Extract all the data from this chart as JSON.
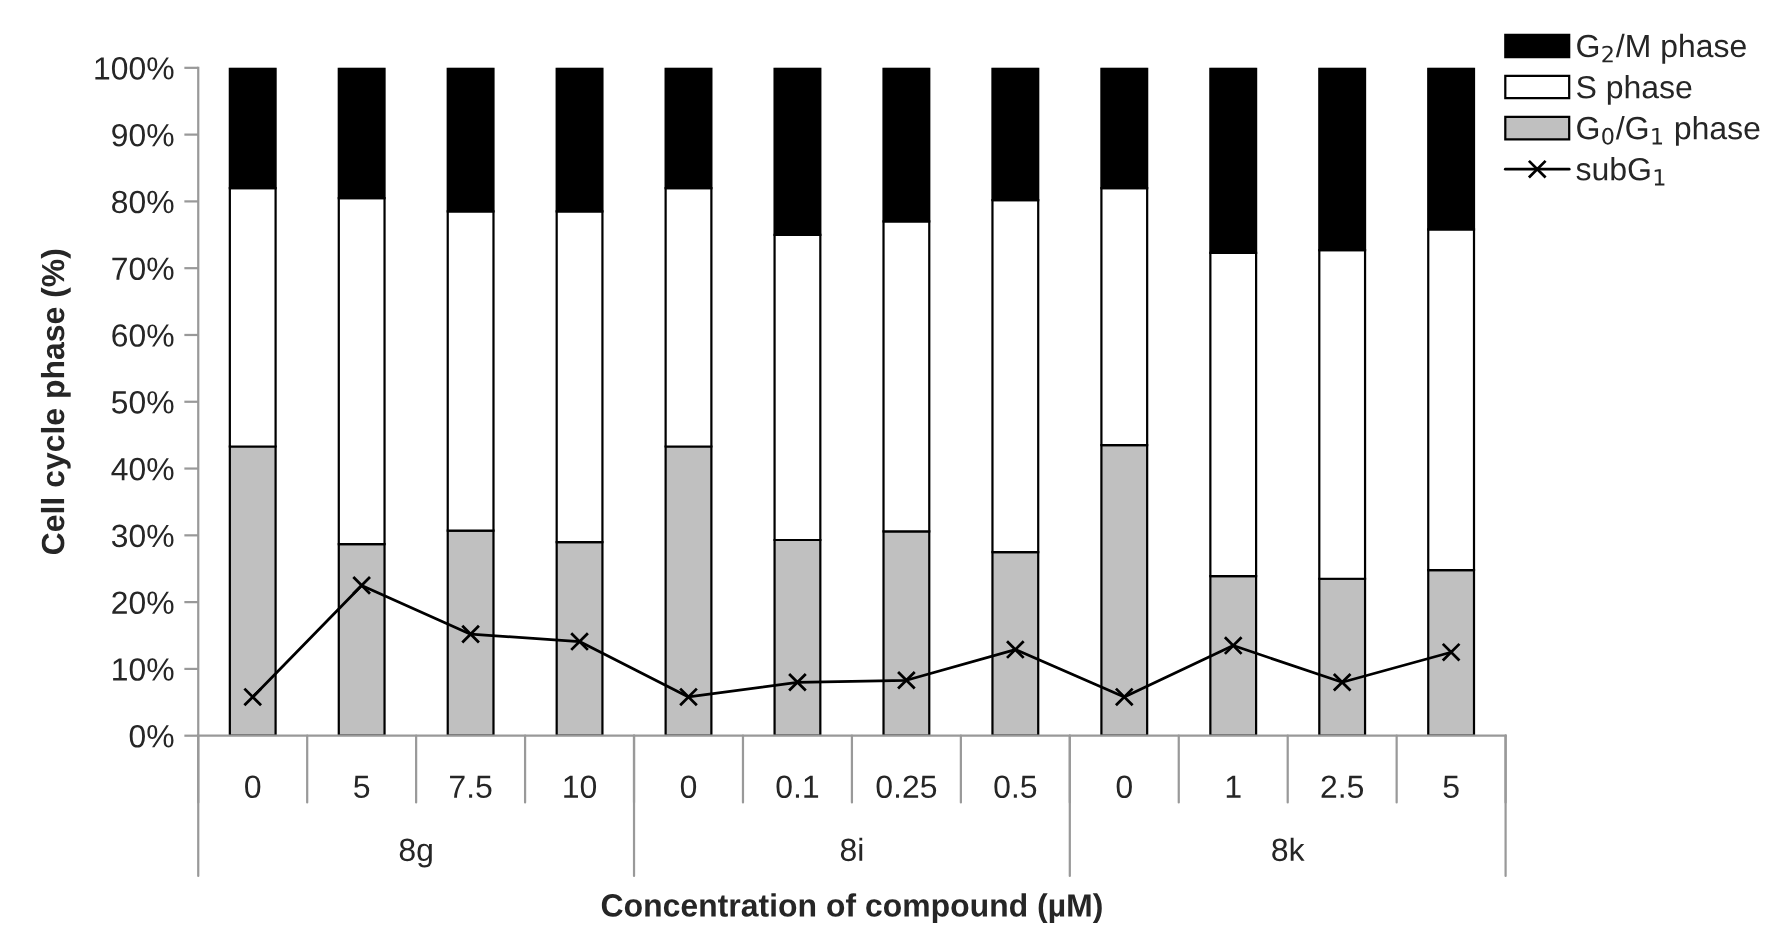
{
  "chart_data": {
    "type": "bar",
    "stacked": true,
    "xlabel": "Concentration of compound (µM)",
    "ylabel": "Cell cycle phase (%)",
    "categories": [
      "0",
      "5",
      "7.5",
      "10",
      "0",
      "0.1",
      "0.25",
      "0.5",
      "0",
      "1",
      "2.5",
      "5"
    ],
    "annotations": [
      "8g",
      "8i",
      "8k"
    ],
    "series": [
      {
        "name": "G$_{0}$/G$_{1}$ phase",
        "color": "#c0c0c0",
        "values": [
          43.3,
          28.7,
          30.7,
          29,
          43.3,
          29.3,
          30.6,
          27.5,
          43.5,
          23.9,
          23.5,
          24.8
        ]
      },
      {
        "name": "S phase",
        "color": "#ffffff",
        "values": [
          38.7,
          51.8,
          47.8,
          49.5,
          38.7,
          45.7,
          46.4,
          52.7,
          38.5,
          48.4,
          49.2,
          51
        ]
      },
      {
        "name": "G$_{2}$/M phase",
        "color": "#000000",
        "values": [
          18,
          19.5,
          21.5,
          21.5,
          18,
          25,
          23,
          19.8,
          18,
          27.7,
          27.3,
          24.2
        ]
      },
      {
        "name": "subG$_{1}$",
        "type": "line",
        "color": "#000000",
        "marker": "cross",
        "values": [
          5.8,
          22.5,
          15.2,
          14.1,
          5.8,
          8.0,
          8.3,
          12.9,
          5.8,
          13.5,
          8.0,
          12.5
        ]
      }
    ],
    "ylim": [
      0,
      100
    ],
    "yticks": [
      {
        "value": 0,
        "label": "0%"
      },
      {
        "value": 10,
        "label": "10%"
      },
      {
        "value": 20,
        "label": "20%"
      },
      {
        "value": 30,
        "label": "30%"
      },
      {
        "value": 40,
        "label": "40%"
      },
      {
        "value": 50,
        "label": "50%"
      },
      {
        "value": 60,
        "label": "60%"
      },
      {
        "value": 70,
        "label": "70%"
      },
      {
        "value": 80,
        "label": "80%"
      },
      {
        "value": 90,
        "label": "90%"
      },
      {
        "value": 100,
        "label": "100%"
      }
    ],
    "grid": false,
    "legend": "top right"
  }
}
